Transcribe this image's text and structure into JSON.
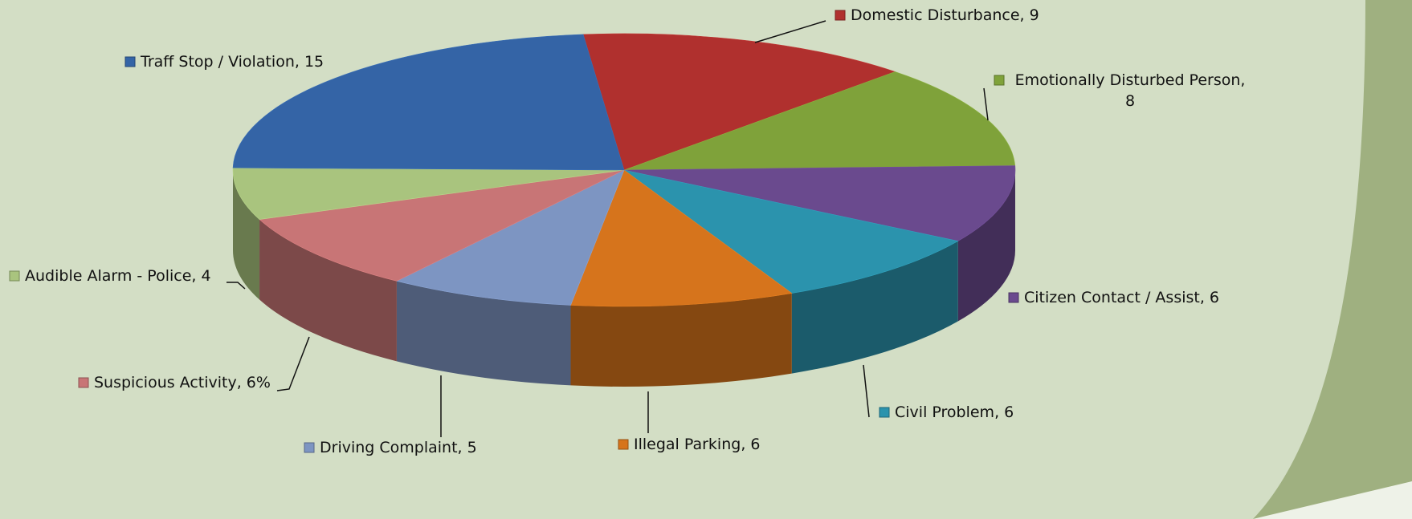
{
  "chart_data": {
    "type": "pie3d",
    "labels": [
      "Domestic Disturbance, 9",
      "Emotionally Disturbed Person, 8",
      "Citizen Contact / Assist, 6",
      "Civil Problem, 6",
      "Illegal Parking, 6",
      "Driving Complaint, 5",
      "Suspicious Activity, 6%",
      "Audible Alarm - Police, 4",
      "Traff Stop / Violation, 15"
    ],
    "values": [
      9,
      8,
      6,
      6,
      6,
      5,
      6,
      4,
      15
    ],
    "colors": [
      "#b0302e",
      "#7fa23a",
      "#6a4a8e",
      "#2b93ad",
      "#d6741c",
      "#7d95c2",
      "#c87576",
      "#a9c47e",
      "#3464a6"
    ]
  }
}
